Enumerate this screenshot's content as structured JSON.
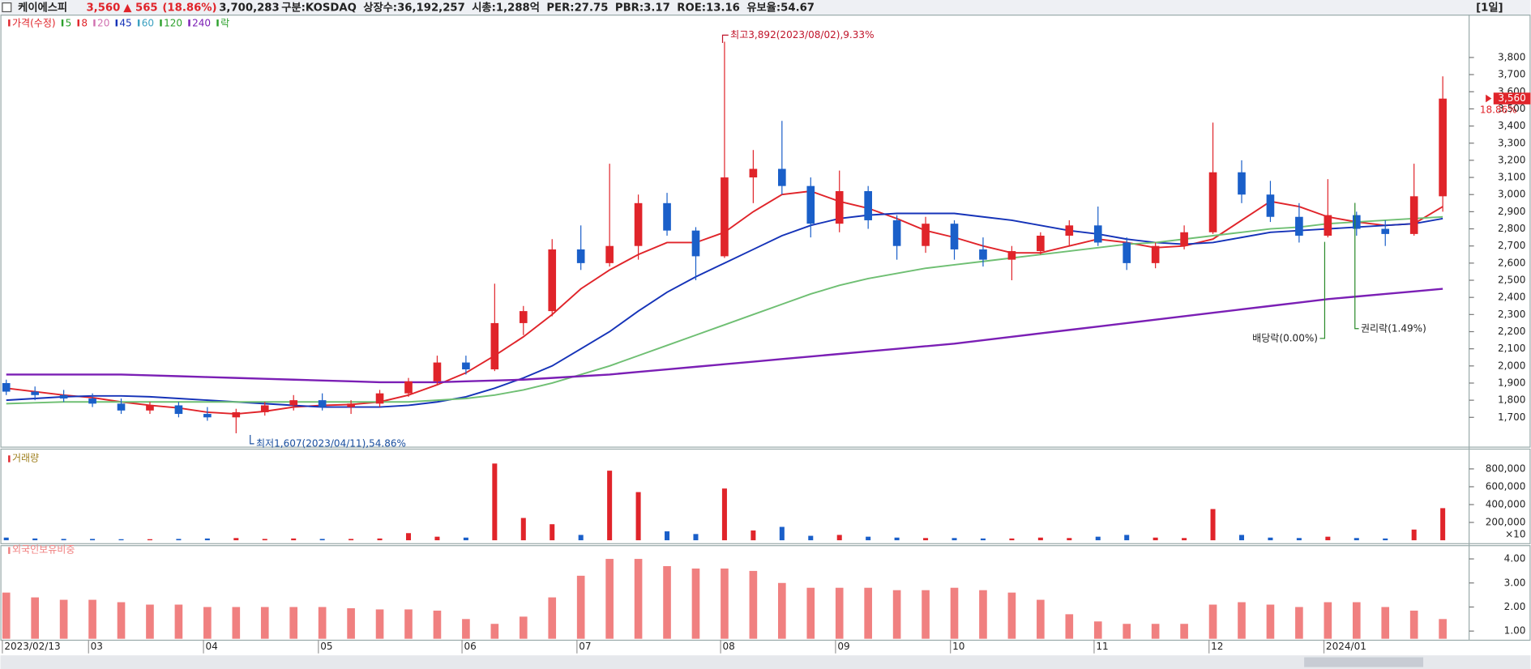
{
  "header": {
    "name": "케이에스피",
    "price": "3,560",
    "change": "▲ 565",
    "change_pct": "(18.86%)",
    "volume": "3,700,283",
    "fields": [
      "구분:KOSDAQ",
      "상장수:36,192,257",
      "시총:1,288억",
      "PER:27.75",
      "PBR:3.17",
      "ROE:13.16",
      "유보율:54.67"
    ],
    "period": "[1일]"
  },
  "chart_data": [
    {
      "type": "candlestick",
      "categories": [
        "2023/02/13",
        null,
        null,
        "03",
        null,
        null,
        null,
        "04",
        null,
        null,
        null,
        "05",
        null,
        null,
        null,
        null,
        "06",
        null,
        null,
        null,
        "07",
        null,
        null,
        null,
        null,
        "08",
        null,
        null,
        null,
        "09",
        null,
        null,
        null,
        "10",
        null,
        null,
        null,
        null,
        "11",
        null,
        null,
        null,
        "12",
        null,
        null,
        null,
        "2024/01",
        null,
        null,
        null,
        null
      ],
      "open": [
        1900,
        1850,
        1830,
        1810,
        1780,
        1740,
        1770,
        1720,
        1700,
        1730,
        1770,
        1800,
        1760,
        1780,
        1840,
        1910,
        2020,
        1980,
        2250,
        2320,
        2680,
        2600,
        2700,
        2950,
        2790,
        2640,
        3100,
        3150,
        3050,
        2830,
        3020,
        2850,
        2700,
        2830,
        2680,
        2620,
        2670,
        2760,
        2820,
        2720,
        2600,
        2700,
        2780,
        3130,
        3000,
        2870,
        2760,
        2880,
        2800,
        2770,
        2990
      ],
      "high": [
        1920,
        1880,
        1860,
        1840,
        1810,
        1790,
        1790,
        1760,
        1750,
        1790,
        1830,
        1840,
        1800,
        1860,
        1930,
        2060,
        2060,
        2480,
        2350,
        2740,
        2820,
        3180,
        3000,
        3010,
        2810,
        3892,
        3260,
        3430,
        3100,
        3140,
        3050,
        2880,
        2870,
        2850,
        2750,
        2700,
        2780,
        2850,
        2930,
        2750,
        2720,
        2820,
        3420,
        3200,
        3080,
        2950,
        3090,
        2900,
        2850,
        3180,
        3690
      ],
      "low": [
        1830,
        1800,
        1790,
        1760,
        1720,
        1720,
        1700,
        1680,
        1607,
        1710,
        1740,
        1740,
        1720,
        1760,
        1820,
        1890,
        1950,
        1970,
        2180,
        2290,
        2560,
        2580,
        2620,
        2760,
        2500,
        2630,
        2950,
        3000,
        2750,
        2780,
        2800,
        2620,
        2660,
        2620,
        2580,
        2500,
        2650,
        2700,
        2700,
        2560,
        2570,
        2680,
        2770,
        2950,
        2840,
        2720,
        2750,
        2760,
        2700,
        2760,
        2900
      ],
      "close": [
        1850,
        1830,
        1810,
        1780,
        1740,
        1770,
        1720,
        1700,
        1730,
        1770,
        1800,
        1760,
        1780,
        1840,
        1910,
        2020,
        1980,
        2250,
        2320,
        2680,
        2600,
        2700,
        2950,
        2790,
        2640,
        3100,
        3150,
        3050,
        2830,
        3020,
        2850,
        2700,
        2830,
        2680,
        2620,
        2670,
        2760,
        2820,
        2720,
        2600,
        2700,
        2780,
        3130,
        3000,
        2870,
        2760,
        2880,
        2800,
        2770,
        2990,
        3560
      ],
      "up_color": "#e0242a",
      "down_color": "#1a5fc9",
      "series": [
        {
          "color": "#e0242a",
          "values": [
            1870,
            1850,
            1830,
            1815,
            1790,
            1770,
            1755,
            1730,
            1720,
            1735,
            1760,
            1770,
            1775,
            1790,
            1830,
            1890,
            1960,
            2060,
            2170,
            2300,
            2450,
            2560,
            2650,
            2720,
            2720,
            2780,
            2900,
            3000,
            3020,
            2960,
            2920,
            2860,
            2790,
            2750,
            2700,
            2660,
            2660,
            2700,
            2740,
            2720,
            2690,
            2700,
            2740,
            2850,
            2960,
            2930,
            2870,
            2840,
            2820,
            2830,
            2930
          ]
        },
        {
          "color": "#1533b8",
          "values": [
            1800,
            1810,
            1820,
            1825,
            1825,
            1820,
            1810,
            1800,
            1790,
            1780,
            1770,
            1760,
            1760,
            1760,
            1770,
            1790,
            1820,
            1870,
            1930,
            2000,
            2100,
            2200,
            2320,
            2430,
            2520,
            2600,
            2680,
            2760,
            2820,
            2860,
            2880,
            2890,
            2890,
            2890,
            2870,
            2850,
            2820,
            2790,
            2770,
            2740,
            2720,
            2710,
            2720,
            2750,
            2780,
            2790,
            2800,
            2810,
            2820,
            2830,
            2860
          ]
        },
        {
          "color": "#6fbf73",
          "values": [
            1780,
            1785,
            1790,
            1790,
            1790,
            1790,
            1790,
            1790,
            1790,
            1790,
            1790,
            1790,
            1790,
            1790,
            1790,
            1800,
            1810,
            1830,
            1860,
            1900,
            1950,
            2000,
            2060,
            2120,
            2180,
            2240,
            2300,
            2360,
            2420,
            2470,
            2510,
            2540,
            2570,
            2590,
            2610,
            2630,
            2650,
            2670,
            2690,
            2710,
            2720,
            2740,
            2760,
            2780,
            2800,
            2810,
            2830,
            2840,
            2850,
            2860,
            2870
          ]
        },
        {
          "color": "#7b1fb5",
          "values": [
            1950,
            1950,
            1950,
            1950,
            1950,
            1945,
            1940,
            1935,
            1930,
            1925,
            1920,
            1915,
            1910,
            1905,
            1905,
            1905,
            1910,
            1915,
            1920,
            1930,
            1940,
            1950,
            1965,
            1980,
            1995,
            2010,
            2025,
            2040,
            2055,
            2070,
            2085,
            2100,
            2115,
            2130,
            2150,
            2170,
            2190,
            2210,
            2230,
            2250,
            2270,
            2290,
            2310,
            2330,
            2350,
            2370,
            2390,
            2405,
            2420,
            2435,
            2450
          ]
        }
      ],
      "legend": [
        {
          "name": "가격(수정)",
          "color": "#e0242a"
        },
        {
          "name": "5",
          "color": "#2ca02c"
        },
        {
          "name": "8",
          "color": "#e0242a"
        },
        {
          "name": "20",
          "color": "#d070b0"
        },
        {
          "name": "45",
          "color": "#1533b8"
        },
        {
          "name": "60",
          "color": "#3aa0c0"
        },
        {
          "name": "120",
          "color": "#2ca02c"
        },
        {
          "name": "240",
          "color": "#7b1fb5"
        },
        {
          "name": "락",
          "color": "#2ca02c"
        }
      ],
      "annotations": [
        "최고3,892(2023/08/02),9.33%",
        "최저1,607(2023/04/11),54.86%",
        "배당락(0.00%)",
        "권리락(1.49%)",
        "3,560",
        "18.86%"
      ],
      "ylim": [
        1529,
        4050
      ],
      "yticks": [
        {
          "value": 1700,
          "label": "1,700"
        },
        {
          "value": 1800,
          "label": "1,800"
        },
        {
          "value": 1900,
          "label": "1,900"
        },
        {
          "value": 2000,
          "label": "2,000"
        },
        {
          "value": 2100,
          "label": "2,100"
        },
        {
          "value": 2200,
          "label": "2,200"
        },
        {
          "value": 2300,
          "label": "2,300"
        },
        {
          "value": 2400,
          "label": "2,400"
        },
        {
          "value": 2500,
          "label": "2,500"
        },
        {
          "value": 2600,
          "label": "2,600"
        },
        {
          "value": 2700,
          "label": "2,700"
        },
        {
          "value": 2800,
          "label": "2,800"
        },
        {
          "value": 2900,
          "label": "2,900"
        },
        {
          "value": 3000,
          "label": "3,000"
        },
        {
          "value": 3100,
          "label": "3,100"
        },
        {
          "value": 3200,
          "label": "3,200"
        },
        {
          "value": 3300,
          "label": "3,300"
        },
        {
          "value": 3400,
          "label": "3,400"
        },
        {
          "value": 3500,
          "label": "3,500"
        },
        {
          "value": 3600,
          "label": "3,600"
        },
        {
          "value": 3700,
          "label": "3,700"
        },
        {
          "value": 3800,
          "label": "3,800"
        }
      ]
    },
    {
      "type": "bar",
      "title": "거래량",
      "unit_label": "×10",
      "values": [
        30000,
        20000,
        15000,
        15000,
        12000,
        12000,
        15000,
        20000,
        25000,
        15000,
        20000,
        15000,
        15000,
        20000,
        80000,
        40000,
        30000,
        860000,
        250000,
        180000,
        60000,
        780000,
        540000,
        100000,
        70000,
        580000,
        110000,
        150000,
        50000,
        60000,
        40000,
        30000,
        25000,
        25000,
        20000,
        20000,
        30000,
        25000,
        40000,
        60000,
        30000,
        25000,
        350000,
        60000,
        30000,
        25000,
        40000,
        25000,
        20000,
        120000,
        360000
      ],
      "ylim": [
        0,
        940000
      ],
      "yticks": [
        {
          "value": 200000,
          "label": "200,000"
        },
        {
          "value": 400000,
          "label": "400,000"
        },
        {
          "value": 600000,
          "label": "600,000"
        },
        {
          "value": 800000,
          "label": "800,000"
        }
      ]
    },
    {
      "type": "bar",
      "title": "외국인보유비중",
      "color": "#f08080",
      "values": [
        2.6,
        2.4,
        2.3,
        2.3,
        2.2,
        2.1,
        2.1,
        2.0,
        2.0,
        2.0,
        2.0,
        2.0,
        1.95,
        1.9,
        1.9,
        1.85,
        1.5,
        1.3,
        1.6,
        2.4,
        3.3,
        4.0,
        4.0,
        3.7,
        3.6,
        3.6,
        3.5,
        3.0,
        2.8,
        2.8,
        2.8,
        2.7,
        2.7,
        2.8,
        2.7,
        2.6,
        2.3,
        1.7,
        1.4,
        1.3,
        1.3,
        1.3,
        2.1,
        2.2,
        2.1,
        2.0,
        2.2,
        2.2,
        2.0,
        1.85,
        1.5
      ],
      "ylim": [
        0.68,
        4.45
      ],
      "yticks": [
        {
          "value": 1,
          "label": "1.00"
        },
        {
          "value": 2,
          "label": "2.00"
        },
        {
          "value": 3,
          "label": "3.00"
        },
        {
          "value": 4,
          "label": "4.00"
        }
      ]
    }
  ]
}
